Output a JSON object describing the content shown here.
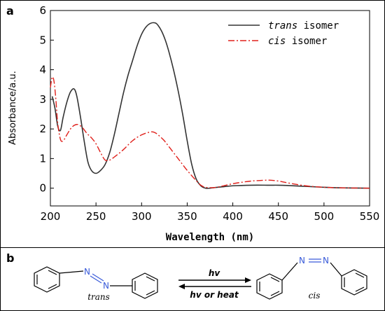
{
  "panel_a_label": "a",
  "panel_b_label": "b",
  "chart_data": {
    "type": "line",
    "xlabel": "Wavelength (nm)",
    "ylabel": "Absorbance/a.u.",
    "xlim": [
      200,
      550
    ],
    "ylim": [
      -0.6,
      6
    ],
    "x_ticks": [
      200,
      250,
      300,
      350,
      400,
      450,
      500,
      550
    ],
    "y_ticks": [
      0,
      1,
      2,
      3,
      4,
      5,
      6
    ],
    "grid": false,
    "legend_position": "top-right",
    "series": [
      {
        "name_prefix": "trans",
        "name_suffix": " isomer",
        "color": "#333333",
        "style": "solid",
        "x": [
          202,
          205,
          208,
          211,
          214,
          218,
          222,
          226,
          229,
          233,
          237,
          241,
          245,
          250,
          255,
          260,
          265,
          270,
          275,
          280,
          285,
          290,
          295,
          300,
          305,
          310,
          315,
          318,
          322,
          326,
          330,
          335,
          340,
          345,
          350,
          355,
          360,
          365,
          370,
          375,
          380,
          390,
          400,
          420,
          440,
          450,
          460,
          480,
          500,
          520,
          550
        ],
        "y": [
          3.1,
          2.7,
          2.1,
          1.95,
          2.4,
          2.9,
          3.25,
          3.35,
          3.1,
          2.4,
          1.6,
          0.9,
          0.6,
          0.5,
          0.6,
          0.8,
          1.2,
          1.8,
          2.5,
          3.2,
          3.8,
          4.3,
          4.8,
          5.2,
          5.45,
          5.57,
          5.58,
          5.5,
          5.3,
          5.0,
          4.6,
          4.0,
          3.3,
          2.5,
          1.6,
          0.8,
          0.3,
          0.08,
          0.0,
          0.0,
          0.02,
          0.05,
          0.08,
          0.1,
          0.1,
          0.1,
          0.09,
          0.06,
          0.03,
          0.01,
          0.0
        ]
      },
      {
        "name_prefix": "cis",
        "name_suffix": " isomer",
        "color": "#e0201b",
        "style": "dash-dot",
        "x": [
          200,
          202,
          204,
          206,
          208,
          211,
          214,
          218,
          222,
          226,
          230,
          235,
          240,
          245,
          250,
          255,
          260,
          265,
          270,
          280,
          290,
          300,
          310,
          315,
          320,
          325,
          330,
          340,
          350,
          360,
          365,
          370,
          380,
          390,
          400,
          410,
          420,
          430,
          440,
          450,
          460,
          480,
          500,
          520,
          550
        ],
        "y": [
          3.4,
          3.75,
          3.6,
          3.0,
          2.2,
          1.65,
          1.6,
          1.8,
          2.0,
          2.12,
          2.15,
          2.05,
          1.85,
          1.7,
          1.5,
          1.2,
          0.95,
          0.95,
          1.05,
          1.3,
          1.6,
          1.8,
          1.9,
          1.87,
          1.75,
          1.6,
          1.4,
          1.0,
          0.6,
          0.25,
          0.1,
          0.03,
          0.02,
          0.08,
          0.15,
          0.2,
          0.24,
          0.26,
          0.27,
          0.24,
          0.18,
          0.08,
          0.03,
          0.01,
          0.0
        ]
      }
    ]
  },
  "scheme": {
    "trans_label": "trans",
    "cis_label": "cis",
    "forward_label": "hv",
    "reverse_label": "hv or heat",
    "atom_n": "N"
  }
}
